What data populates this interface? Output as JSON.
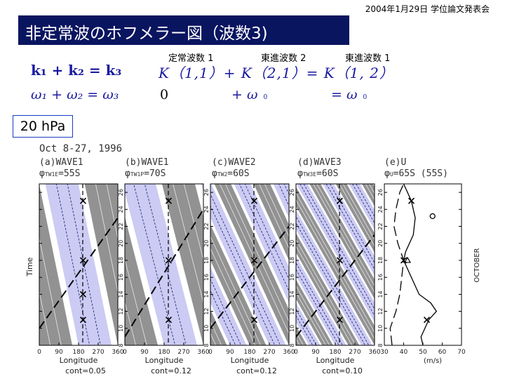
{
  "header": {
    "date_text": "2004年1月29日 学位論文発表会"
  },
  "title": "非定常波のホフメラー図（波数3)",
  "equation": {
    "labels": [
      {
        "text": "定常波数 1",
        "color": "#e02020"
      },
      {
        "text": "東進波数 2",
        "color": "#2020d0"
      },
      {
        "text": "東進波数 1",
        "color": "#10a020"
      }
    ],
    "row1_left": "k₁ + k₂ = k₃",
    "row1_right": "K（1,1）+ K（2,1）= K（1, 2）",
    "row2_left": "ω₁ + ω₂ = ω₃",
    "row2_zero": "0",
    "row2_plus": "+ ω",
    "row2_plus_sub": "0",
    "row2_eq": "= ω",
    "row2_eq_sub": "0"
  },
  "level_box": "20 hPa",
  "figure": {
    "period": "Oct 8-27, 1996",
    "ylabel": "Time",
    "right_ylabel": "OCTOBER",
    "panels": [
      {
        "title": "(a)WAVE1",
        "phi": "φ",
        "phi_sub": "TW1E",
        "phi_val": "=55S",
        "cont": "cont=0.05",
        "xlabel": "Longitude"
      },
      {
        "title": "(b)WAVE1",
        "phi": "φ",
        "phi_sub": "TW1P",
        "phi_val": "=70S",
        "cont": "cont=0.12",
        "xlabel": "Longitude"
      },
      {
        "title": "(c)WAVE2",
        "phi": "φ",
        "phi_sub": "TW2",
        "phi_val": "=60S",
        "cont": "cont=0.12",
        "xlabel": "Longitude"
      },
      {
        "title": "(d)WAVE3",
        "phi": "φ",
        "phi_sub": "TW3E",
        "phi_val": "=60S",
        "cont": "cont=0.10",
        "xlabel": "Longitude"
      }
    ],
    "u_panel": {
      "title": "(e)U",
      "phi": "φ",
      "phi_sub": "U",
      "phi_val": "=65S (55S)",
      "xlabel": "(m/s)",
      "xticks": [
        "30",
        "40",
        "50",
        "60",
        "70"
      ]
    },
    "lon_ticks": [
      "0",
      "90",
      "180",
      "270",
      "360"
    ],
    "day_ticks": [
      "8",
      "10",
      "12",
      "14",
      "16",
      "18",
      "20",
      "22",
      "24",
      "26"
    ]
  },
  "chart_data": {
    "type": "line",
    "title": "(e)U",
    "xlabel": "(m/s)",
    "ylabel": "OCTOBER",
    "xlim": [
      30,
      70
    ],
    "ylim": [
      8,
      27
    ],
    "series": [
      {
        "name": "U 65S",
        "style": "solid",
        "points": [
          [
            50,
            8
          ],
          [
            49,
            9
          ],
          [
            53,
            11
          ],
          [
            57,
            12
          ],
          [
            54,
            13
          ],
          [
            48,
            14
          ],
          [
            44,
            16
          ],
          [
            40,
            18
          ],
          [
            41,
            19
          ],
          [
            45,
            21
          ],
          [
            46,
            23
          ],
          [
            44,
            25
          ],
          [
            40,
            27
          ]
        ]
      },
      {
        "name": "U 55S",
        "style": "dashed",
        "points": [
          [
            34,
            8
          ],
          [
            33,
            10
          ],
          [
            36,
            12
          ],
          [
            38,
            14
          ],
          [
            39,
            16
          ],
          [
            40,
            18
          ],
          [
            37,
            20
          ],
          [
            35,
            22
          ],
          [
            36,
            24
          ],
          [
            38,
            26
          ],
          [
            40,
            27
          ]
        ]
      }
    ],
    "markers": [
      {
        "symbol": "x",
        "u": 44,
        "day": 25
      },
      {
        "symbol": "x",
        "u": 40,
        "day": 18
      },
      {
        "symbol": "x",
        "u": 52,
        "day": 11
      },
      {
        "symbol": "o",
        "u": 55,
        "day": 23.2
      },
      {
        "symbol": "triangle",
        "u": 42,
        "day": 18
      }
    ]
  }
}
